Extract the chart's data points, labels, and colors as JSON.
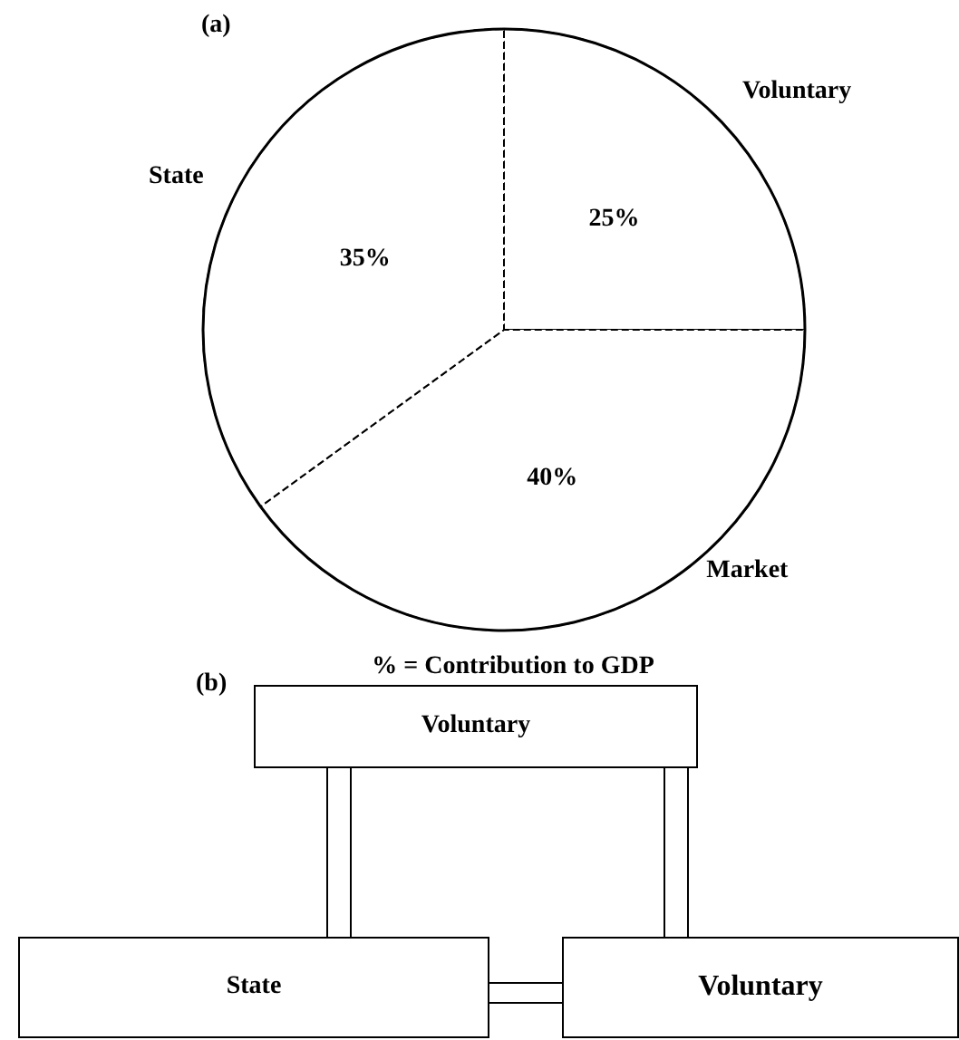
{
  "chart_data": [
    {
      "type": "pie",
      "title": "(a)",
      "subtitle": "% = Contribution to GDP",
      "categories": [
        "Voluntary",
        "Market",
        "State"
      ],
      "values": [
        25,
        40,
        35
      ],
      "value_labels": [
        "25%",
        "40%",
        "35%"
      ],
      "colors": [
        "#ffffff",
        "#ffffff",
        "#ffffff"
      ],
      "line_style": "dashed",
      "legend": false
    },
    {
      "type": "other",
      "title": "(b)",
      "annotations": [
        "Voluntary",
        "State",
        "Voluntary"
      ]
    }
  ]
}
